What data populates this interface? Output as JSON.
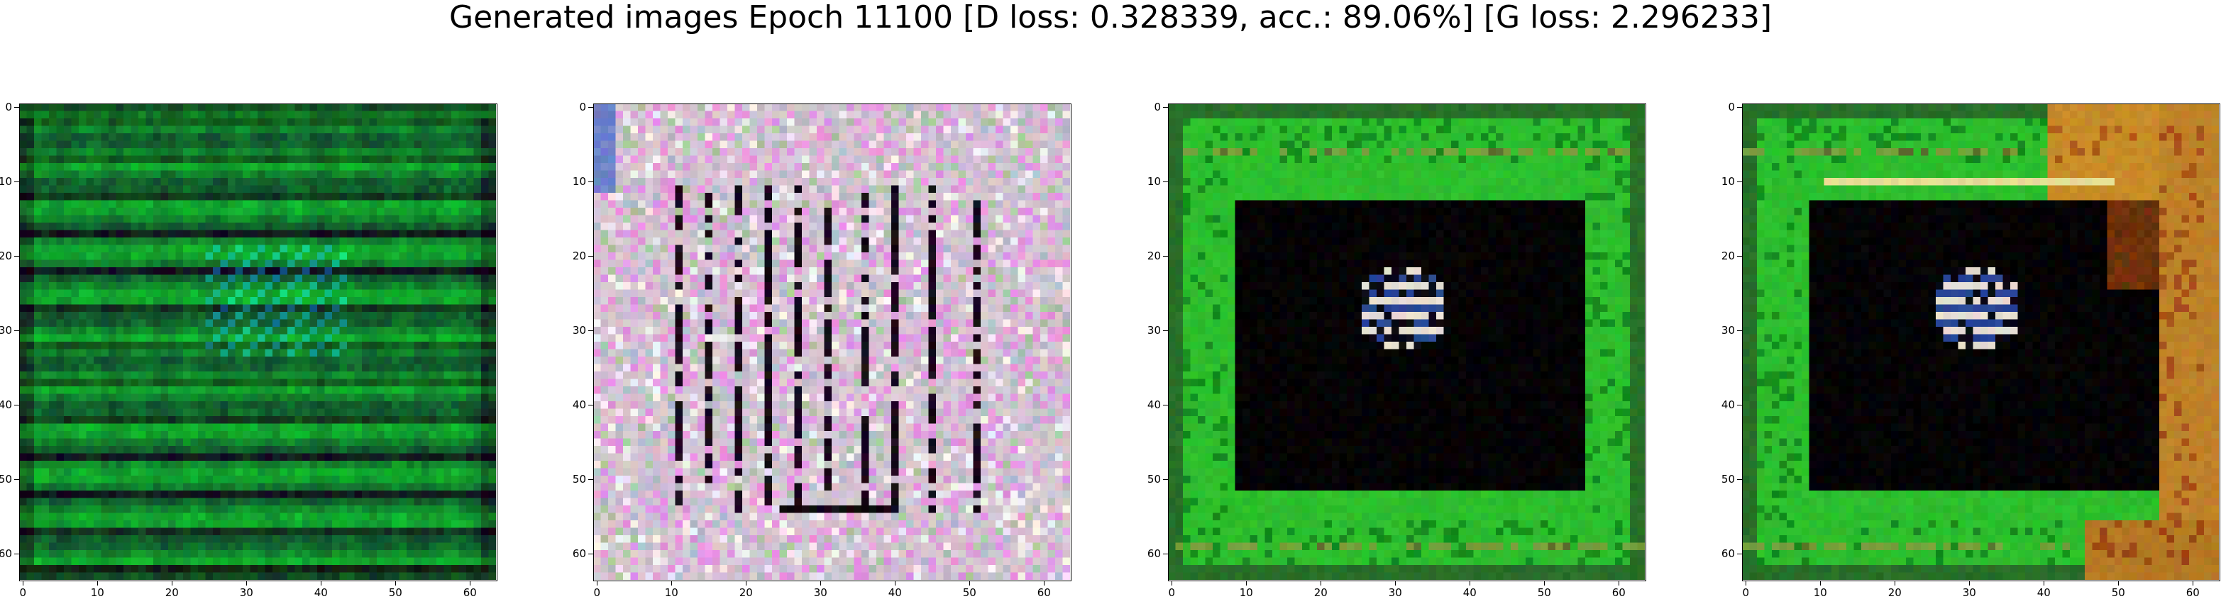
{
  "figure": {
    "title": "Generated images Epoch 11100 [D loss: 0.328339, acc.: 89.06%] [G loss: 2.296233]"
  },
  "panels": [
    {
      "kind": "green-stripes",
      "description_colors": {
        "base": "#0d7a2b",
        "dark": "#06301a",
        "light": "#2fcf5a",
        "cyan": "#22c7a0"
      }
    },
    {
      "kind": "pastel-noise",
      "description_colors": {
        "base": "#d8c6d4",
        "pink": "#e49be0",
        "dark": "#120812",
        "light": "#f5eef2"
      }
    },
    {
      "kind": "green-frame-dark",
      "description_colors": {
        "frame": "#28c62f",
        "center": "#000000",
        "blob_light": "#e6ddd2",
        "blob_blue": "#3b5aa8"
      }
    },
    {
      "kind": "green-orange-frame-dark",
      "description_colors": {
        "frame": "#2fb82a",
        "orange": "#c58a26",
        "center": "#000000",
        "blob_light": "#e6ddd2",
        "blob_blue": "#3b5aa8"
      }
    }
  ],
  "axes": {
    "x_ticks": [
      "0",
      "10",
      "20",
      "30",
      "40",
      "50",
      "60"
    ],
    "y_ticks": [
      "0",
      "10",
      "20",
      "30",
      "40",
      "50",
      "60"
    ],
    "image_size": 64
  }
}
